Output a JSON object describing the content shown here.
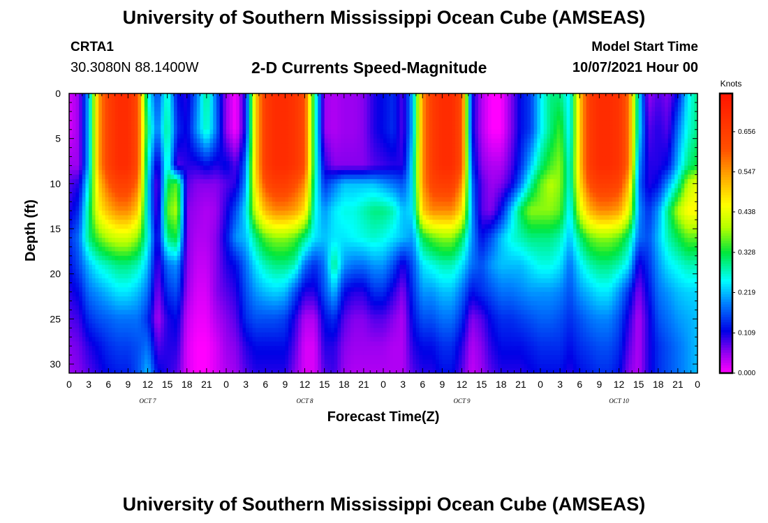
{
  "page": {
    "title_top": "University of Southern Mississippi Ocean Cube (AMSEAS)",
    "title_bottom": "University of Southern Mississippi Ocean Cube (AMSEAS)",
    "station_id": "CRTA1",
    "station_coords": "30.3080N  88.1400W",
    "subtitle": "2-D Currents Speed-Magnitude",
    "model_label": "Model Start Time",
    "model_date": "10/07/2021 Hour 00"
  },
  "chart_data": {
    "type": "heatmap",
    "title": "2-D Currents Speed-Magnitude",
    "xlabel": "Forecast Time(Z)",
    "ylabel": "Depth (ft)",
    "x_hours_range": [
      0,
      96
    ],
    "y_depth_range_ft": [
      0,
      31
    ],
    "x_tick_labels": [
      "0",
      "3",
      "6",
      "9",
      "12",
      "15",
      "18",
      "21",
      "0",
      "3",
      "6",
      "9",
      "12",
      "15",
      "18",
      "21",
      "0",
      "3",
      "6",
      "9",
      "12",
      "15",
      "18",
      "21",
      "0",
      "3",
      "6",
      "9",
      "12",
      "15",
      "18",
      "21",
      "0"
    ],
    "x_day_labels": [
      {
        "label": "OCT 7",
        "hour": 12
      },
      {
        "label": "OCT 8",
        "hour": 36
      },
      {
        "label": "OCT 9",
        "hour": 60
      },
      {
        "label": "OCT 10",
        "hour": 84
      }
    ],
    "y_tick_labels": [
      "0",
      "5",
      "10",
      "15",
      "20",
      "25",
      "30"
    ],
    "y_ticks": [
      0,
      5,
      10,
      15,
      20,
      25,
      30
    ],
    "colorbar": {
      "unit": "Knots",
      "min": 0.0,
      "max": 0.76,
      "tick_labels": [
        "0.000",
        "0.109",
        "0.219",
        "0.328",
        "0.438",
        "0.547",
        "0.656"
      ],
      "ticks": [
        0.0,
        0.109,
        0.219,
        0.328,
        0.438,
        0.547,
        0.656
      ]
    },
    "speed_knots_by_depth": {
      "hours": [
        0,
        1.5,
        3,
        4.5,
        6,
        7.5,
        9,
        10.5,
        12,
        13.5,
        15,
        16.5,
        18,
        19.5,
        21,
        22.5,
        24,
        25.5,
        27,
        28.5,
        30,
        31.5,
        33,
        34.5,
        36,
        37.5,
        39,
        40.5,
        42,
        43.5,
        45,
        46.5,
        48,
        49.5,
        51,
        52.5,
        54,
        55.5,
        57,
        58.5,
        60,
        61.5,
        63,
        64.5,
        66,
        67.5,
        69,
        70.5,
        72,
        73.5,
        75,
        76.5,
        78,
        79.5,
        81,
        82.5,
        84,
        85.5,
        87,
        88.5,
        90,
        91.5,
        93,
        94.5,
        96
      ],
      "depths_ft": [
        0,
        4,
        8,
        10,
        13,
        16,
        19,
        22,
        25,
        28,
        31
      ],
      "rows": [
        [
          0.02,
          0.05,
          0.22,
          0.54,
          0.65,
          0.7,
          0.7,
          0.62,
          0.26,
          0.15,
          0.28,
          0.12,
          0.1,
          0.18,
          0.3,
          0.17,
          0.05,
          0.0,
          0.12,
          0.5,
          0.66,
          0.7,
          0.7,
          0.68,
          0.62,
          0.3,
          0.05,
          0.04,
          0.05,
          0.05,
          0.06,
          0.1,
          0.12,
          0.14,
          0.08,
          0.22,
          0.55,
          0.66,
          0.7,
          0.7,
          0.62,
          0.12,
          0.04,
          0.0,
          0.0,
          0.06,
          0.12,
          0.15,
          0.24,
          0.3,
          0.3,
          0.24,
          0.5,
          0.66,
          0.7,
          0.7,
          0.68,
          0.58,
          0.25,
          0.05,
          0.08,
          0.06,
          0.12,
          0.24,
          0.3
        ],
        [
          0.02,
          0.05,
          0.22,
          0.54,
          0.65,
          0.7,
          0.7,
          0.62,
          0.3,
          0.18,
          0.3,
          0.14,
          0.11,
          0.2,
          0.28,
          0.18,
          0.05,
          0.0,
          0.12,
          0.5,
          0.66,
          0.7,
          0.7,
          0.68,
          0.62,
          0.3,
          0.05,
          0.04,
          0.05,
          0.05,
          0.06,
          0.1,
          0.12,
          0.14,
          0.08,
          0.22,
          0.55,
          0.66,
          0.7,
          0.7,
          0.62,
          0.12,
          0.04,
          0.0,
          0.0,
          0.06,
          0.12,
          0.15,
          0.24,
          0.3,
          0.35,
          0.24,
          0.5,
          0.66,
          0.7,
          0.7,
          0.68,
          0.58,
          0.25,
          0.08,
          0.1,
          0.08,
          0.18,
          0.26,
          0.3
        ],
        [
          0.05,
          0.05,
          0.22,
          0.54,
          0.65,
          0.7,
          0.7,
          0.62,
          0.26,
          0.09,
          0.28,
          0.08,
          0.1,
          0.1,
          0.12,
          0.1,
          0.12,
          0.08,
          0.18,
          0.5,
          0.66,
          0.7,
          0.7,
          0.68,
          0.62,
          0.3,
          0.1,
          0.06,
          0.06,
          0.06,
          0.06,
          0.08,
          0.09,
          0.1,
          0.1,
          0.25,
          0.55,
          0.66,
          0.7,
          0.7,
          0.62,
          0.15,
          0.06,
          0.04,
          0.04,
          0.08,
          0.14,
          0.22,
          0.3,
          0.35,
          0.38,
          0.26,
          0.5,
          0.66,
          0.7,
          0.7,
          0.68,
          0.58,
          0.2,
          0.1,
          0.1,
          0.12,
          0.22,
          0.3,
          0.33
        ],
        [
          0.08,
          0.1,
          0.26,
          0.5,
          0.6,
          0.65,
          0.65,
          0.58,
          0.24,
          0.06,
          0.32,
          0.36,
          0.08,
          0.06,
          0.06,
          0.06,
          0.08,
          0.1,
          0.2,
          0.48,
          0.62,
          0.66,
          0.66,
          0.62,
          0.56,
          0.28,
          0.14,
          0.18,
          0.22,
          0.22,
          0.22,
          0.22,
          0.2,
          0.18,
          0.16,
          0.24,
          0.55,
          0.64,
          0.66,
          0.66,
          0.56,
          0.18,
          0.08,
          0.05,
          0.06,
          0.1,
          0.18,
          0.28,
          0.36,
          0.4,
          0.38,
          0.26,
          0.48,
          0.62,
          0.66,
          0.66,
          0.64,
          0.52,
          0.18,
          0.1,
          0.12,
          0.2,
          0.28,
          0.4,
          0.44
        ],
        [
          0.1,
          0.14,
          0.3,
          0.46,
          0.52,
          0.56,
          0.56,
          0.5,
          0.24,
          0.07,
          0.36,
          0.4,
          0.06,
          0.05,
          0.04,
          0.05,
          0.1,
          0.16,
          0.24,
          0.42,
          0.52,
          0.56,
          0.56,
          0.54,
          0.48,
          0.26,
          0.2,
          0.24,
          0.26,
          0.26,
          0.28,
          0.3,
          0.3,
          0.28,
          0.22,
          0.24,
          0.5,
          0.56,
          0.56,
          0.56,
          0.48,
          0.2,
          0.08,
          0.06,
          0.12,
          0.22,
          0.32,
          0.38,
          0.38,
          0.38,
          0.36,
          0.24,
          0.42,
          0.52,
          0.56,
          0.56,
          0.54,
          0.44,
          0.2,
          0.14,
          0.2,
          0.3,
          0.4,
          0.46,
          0.46
        ],
        [
          0.14,
          0.18,
          0.3,
          0.36,
          0.4,
          0.42,
          0.42,
          0.38,
          0.26,
          0.1,
          0.3,
          0.33,
          0.06,
          0.04,
          0.04,
          0.06,
          0.12,
          0.2,
          0.22,
          0.3,
          0.36,
          0.38,
          0.38,
          0.36,
          0.3,
          0.24,
          0.22,
          0.24,
          0.24,
          0.25,
          0.26,
          0.27,
          0.26,
          0.24,
          0.22,
          0.2,
          0.32,
          0.36,
          0.38,
          0.38,
          0.32,
          0.2,
          0.12,
          0.16,
          0.22,
          0.26,
          0.28,
          0.3,
          0.3,
          0.3,
          0.28,
          0.22,
          0.3,
          0.36,
          0.38,
          0.38,
          0.36,
          0.3,
          0.18,
          0.16,
          0.22,
          0.28,
          0.32,
          0.36,
          0.36
        ],
        [
          0.12,
          0.16,
          0.22,
          0.26,
          0.28,
          0.3,
          0.3,
          0.28,
          0.22,
          0.08,
          0.18,
          0.2,
          0.06,
          0.03,
          0.03,
          0.06,
          0.1,
          0.12,
          0.18,
          0.24,
          0.28,
          0.3,
          0.3,
          0.28,
          0.18,
          0.14,
          0.18,
          0.3,
          0.2,
          0.18,
          0.18,
          0.2,
          0.2,
          0.16,
          0.1,
          0.16,
          0.24,
          0.26,
          0.28,
          0.28,
          0.24,
          0.18,
          0.16,
          0.2,
          0.22,
          0.22,
          0.22,
          0.24,
          0.26,
          0.26,
          0.24,
          0.18,
          0.24,
          0.28,
          0.3,
          0.3,
          0.28,
          0.24,
          0.1,
          0.14,
          0.2,
          0.24,
          0.26,
          0.28,
          0.28
        ],
        [
          0.1,
          0.12,
          0.18,
          0.2,
          0.22,
          0.24,
          0.24,
          0.22,
          0.18,
          0.06,
          0.14,
          0.16,
          0.05,
          0.02,
          0.02,
          0.06,
          0.08,
          0.1,
          0.16,
          0.2,
          0.22,
          0.23,
          0.22,
          0.16,
          0.1,
          0.1,
          0.16,
          0.22,
          0.12,
          0.1,
          0.1,
          0.14,
          0.14,
          0.1,
          0.06,
          0.14,
          0.2,
          0.2,
          0.22,
          0.22,
          0.18,
          0.12,
          0.14,
          0.16,
          0.18,
          0.18,
          0.19,
          0.2,
          0.2,
          0.2,
          0.19,
          0.16,
          0.2,
          0.22,
          0.24,
          0.24,
          0.2,
          0.14,
          0.06,
          0.12,
          0.18,
          0.2,
          0.22,
          0.23,
          0.23
        ],
        [
          0.08,
          0.09,
          0.14,
          0.16,
          0.17,
          0.18,
          0.18,
          0.18,
          0.14,
          0.04,
          0.1,
          0.12,
          0.03,
          0.01,
          0.01,
          0.04,
          0.06,
          0.08,
          0.14,
          0.16,
          0.16,
          0.16,
          0.15,
          0.1,
          0.04,
          0.04,
          0.12,
          0.14,
          0.08,
          0.06,
          0.06,
          0.08,
          0.08,
          0.06,
          0.04,
          0.12,
          0.16,
          0.16,
          0.18,
          0.18,
          0.14,
          0.06,
          0.08,
          0.12,
          0.14,
          0.14,
          0.15,
          0.16,
          0.17,
          0.17,
          0.16,
          0.14,
          0.16,
          0.18,
          0.19,
          0.19,
          0.16,
          0.1,
          0.04,
          0.1,
          0.16,
          0.18,
          0.2,
          0.21,
          0.22
        ],
        [
          0.06,
          0.07,
          0.1,
          0.12,
          0.14,
          0.15,
          0.15,
          0.16,
          0.18,
          0.08,
          0.1,
          0.1,
          0.02,
          0.0,
          0.0,
          0.02,
          0.05,
          0.06,
          0.1,
          0.12,
          0.12,
          0.12,
          0.12,
          0.08,
          0.02,
          0.02,
          0.1,
          0.1,
          0.06,
          0.05,
          0.05,
          0.05,
          0.05,
          0.04,
          0.04,
          0.1,
          0.12,
          0.12,
          0.14,
          0.14,
          0.1,
          0.04,
          0.06,
          0.1,
          0.12,
          0.12,
          0.12,
          0.13,
          0.14,
          0.14,
          0.14,
          0.12,
          0.14,
          0.15,
          0.16,
          0.16,
          0.14,
          0.08,
          0.04,
          0.1,
          0.14,
          0.16,
          0.18,
          0.2,
          0.22
        ],
        [
          0.05,
          0.06,
          0.08,
          0.1,
          0.12,
          0.13,
          0.13,
          0.16,
          0.22,
          0.12,
          0.1,
          0.08,
          0.02,
          0.0,
          0.0,
          0.02,
          0.04,
          0.05,
          0.08,
          0.1,
          0.1,
          0.1,
          0.1,
          0.06,
          0.02,
          0.02,
          0.08,
          0.09,
          0.05,
          0.04,
          0.04,
          0.04,
          0.04,
          0.04,
          0.04,
          0.08,
          0.1,
          0.1,
          0.12,
          0.12,
          0.08,
          0.03,
          0.05,
          0.08,
          0.1,
          0.1,
          0.1,
          0.11,
          0.12,
          0.12,
          0.12,
          0.1,
          0.12,
          0.13,
          0.14,
          0.14,
          0.12,
          0.06,
          0.04,
          0.1,
          0.14,
          0.16,
          0.18,
          0.2,
          0.22
        ]
      ]
    }
  }
}
